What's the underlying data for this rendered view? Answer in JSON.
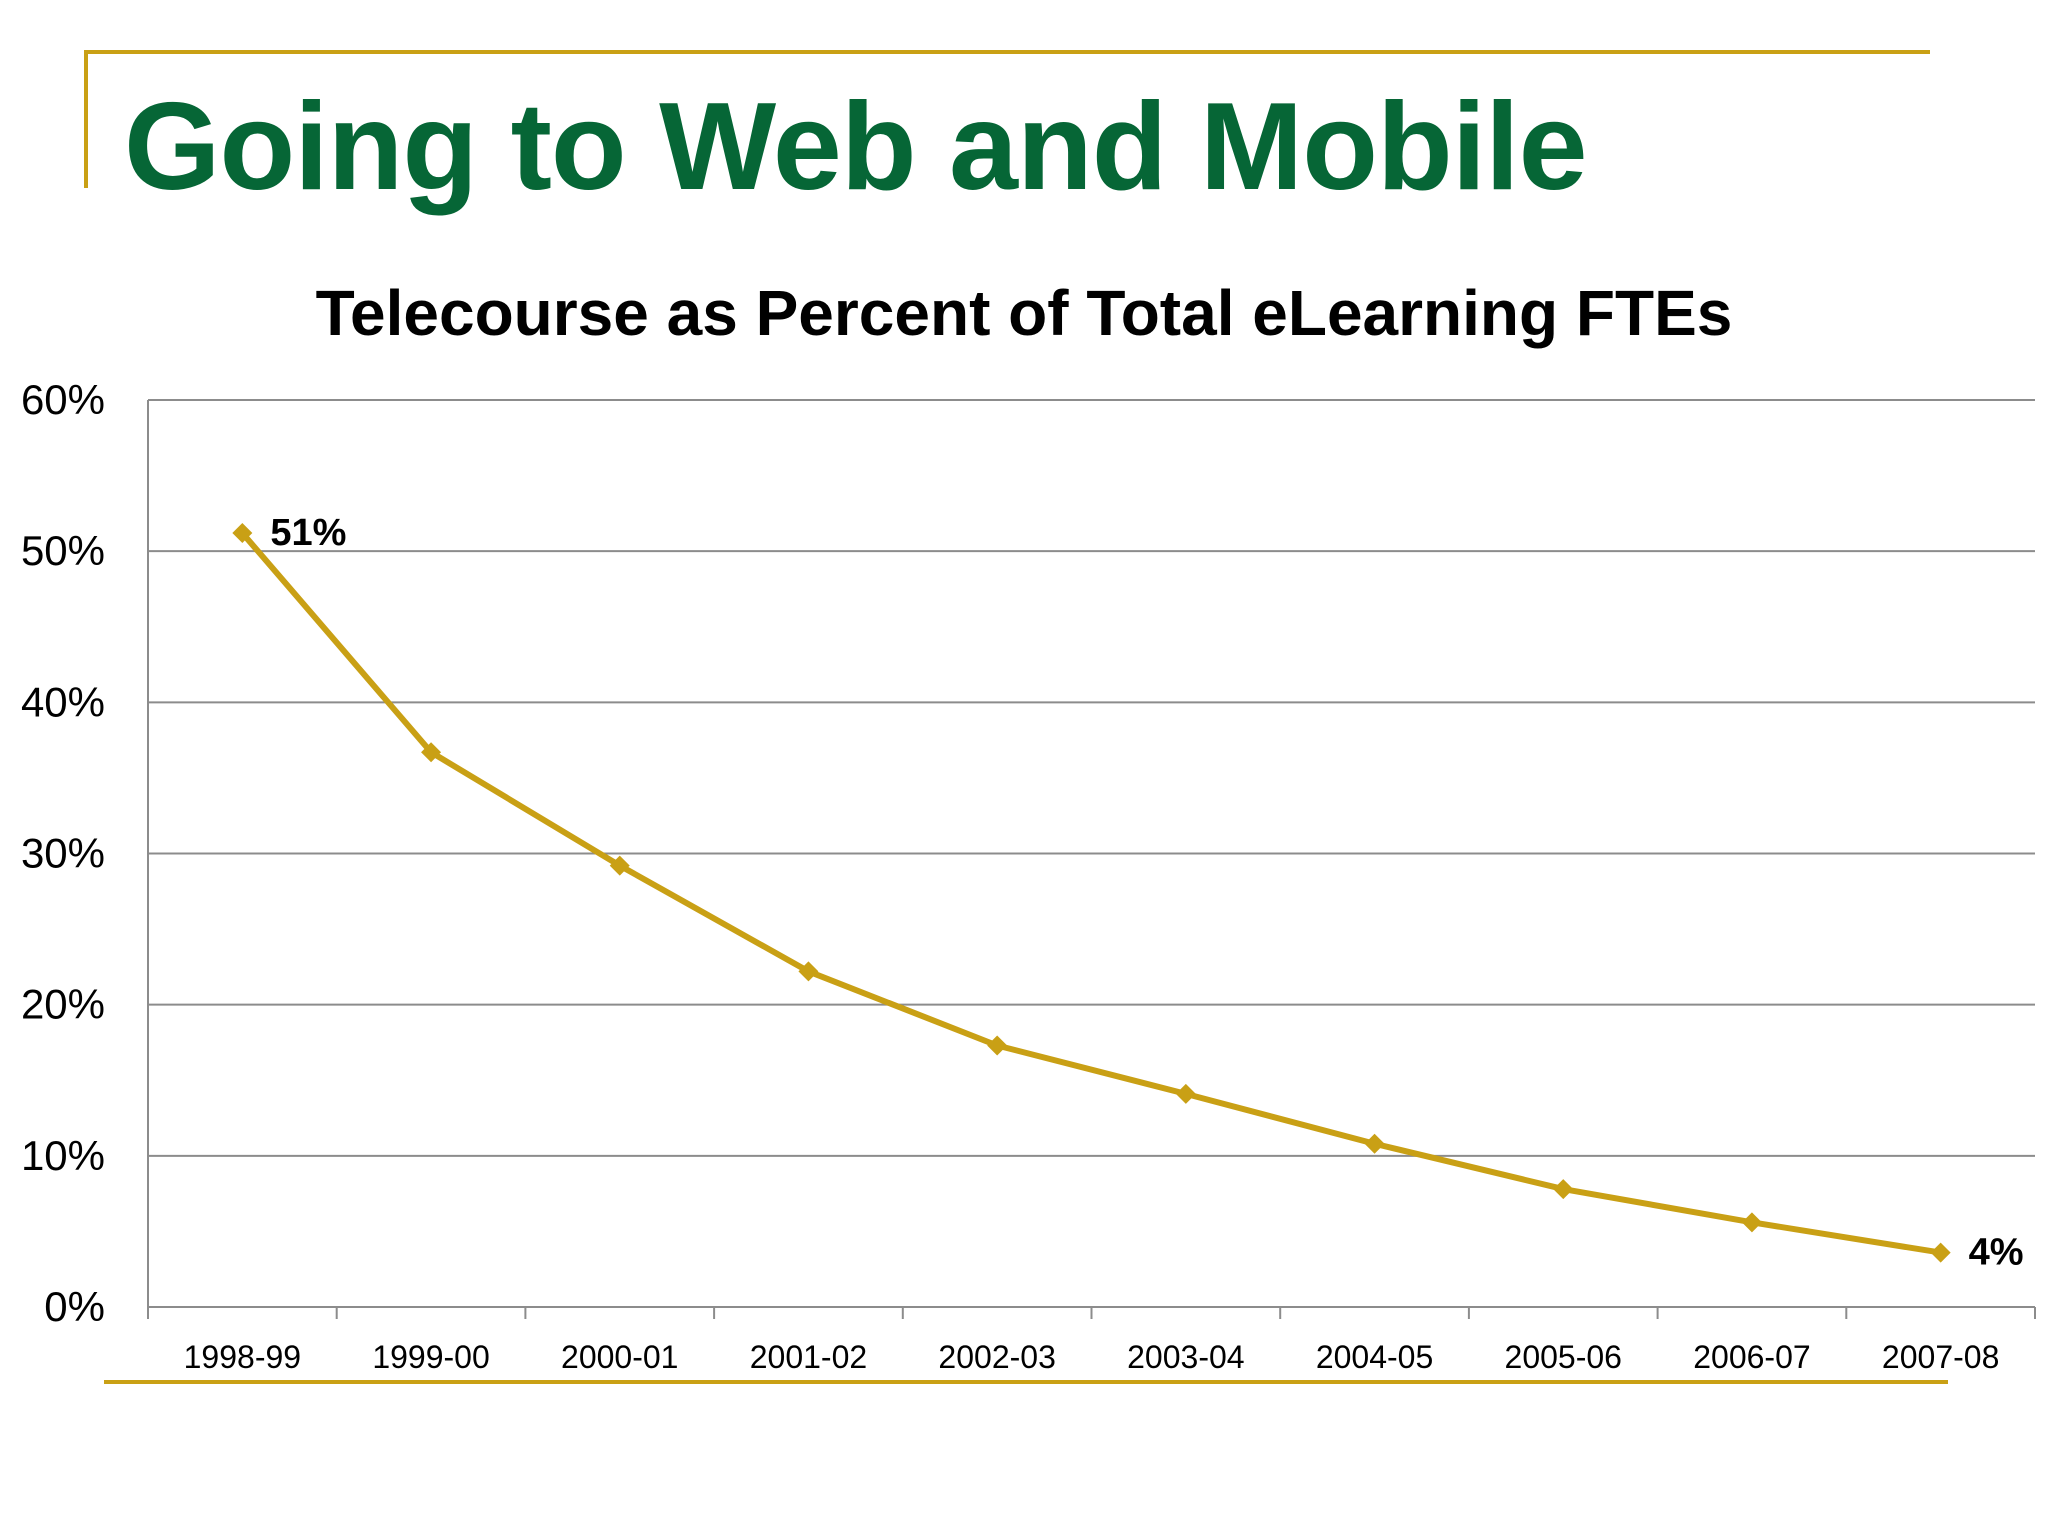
{
  "slide": {
    "title": "Going to Web and Mobile"
  },
  "colors": {
    "title": "#066636",
    "rule": "#C9A015",
    "series": "#C9A015",
    "grid": "#8C8C8C",
    "text": "#000000"
  },
  "chart_data": {
    "type": "line",
    "title": "Telecourse as Percent of Total eLearning FTEs",
    "xlabel": "",
    "ylabel": "",
    "categories": [
      "1998-99",
      "1999-00",
      "2000-01",
      "2001-02",
      "2002-03",
      "2003-04",
      "2004-05",
      "2005-06",
      "2006-07",
      "2007-08"
    ],
    "series": [
      {
        "values": [
          51.2,
          36.7,
          29.2,
          22.2,
          17.3,
          14.1,
          10.8,
          7.8,
          5.6,
          3.6
        ],
        "marker": "diamond"
      }
    ],
    "data_labels": [
      {
        "index": 0,
        "text": "51%"
      },
      {
        "index": 9,
        "text": "4%"
      }
    ],
    "ylim": [
      0,
      60
    ],
    "yticks": [
      0,
      10,
      20,
      30,
      40,
      50,
      60
    ],
    "ytick_labels": [
      "0%",
      "10%",
      "20%",
      "30%",
      "40%",
      "50%",
      "60%"
    ],
    "grid": true,
    "legend": "none"
  }
}
